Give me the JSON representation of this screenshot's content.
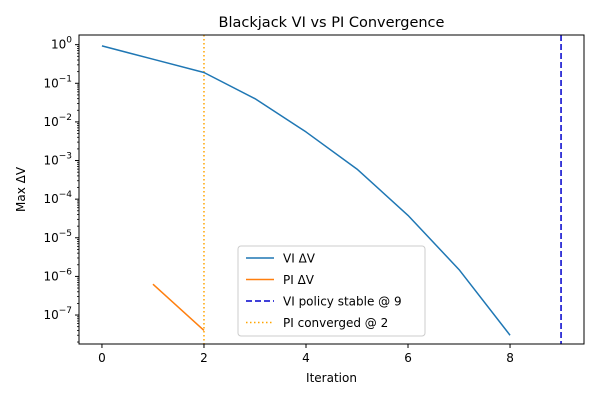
{
  "chart_data": {
    "type": "line",
    "title": "Blackjack VI vs PI Convergence",
    "xlabel": "Iteration",
    "ylabel": "Max ΔV",
    "xlim": [
      -0.45,
      9.45
    ],
    "ylim_log10": [
      -7.75,
      0.25
    ],
    "yscale": "log",
    "xticks": [
      0,
      2,
      4,
      6,
      8
    ],
    "yticks_exp": [
      0,
      -1,
      -2,
      -3,
      -4,
      -5,
      -6,
      -7
    ],
    "grid": false,
    "legend_position": "lower-center",
    "series": [
      {
        "name": "VI ΔV",
        "color": "#1f77b4",
        "style": "solid",
        "x": [
          0,
          1,
          2,
          3,
          4,
          5,
          6,
          7,
          8
        ],
        "y": [
          0.93,
          0.42,
          0.19,
          0.04,
          0.0055,
          0.0006,
          3.8e-05,
          1.5e-06,
          3e-08
        ]
      },
      {
        "name": "PI ΔV",
        "color": "#ff7f0e",
        "style": "solid",
        "x": [
          1,
          2
        ],
        "y": [
          6.3e-07,
          4e-08
        ]
      }
    ],
    "vlines": [
      {
        "name": "VI policy stable @ 9",
        "x": 9,
        "color": "#0000cc",
        "style": "dashed"
      },
      {
        "name": "PI converged @ 2",
        "x": 2,
        "color": "#ffa500",
        "style": "dotted"
      }
    ]
  }
}
